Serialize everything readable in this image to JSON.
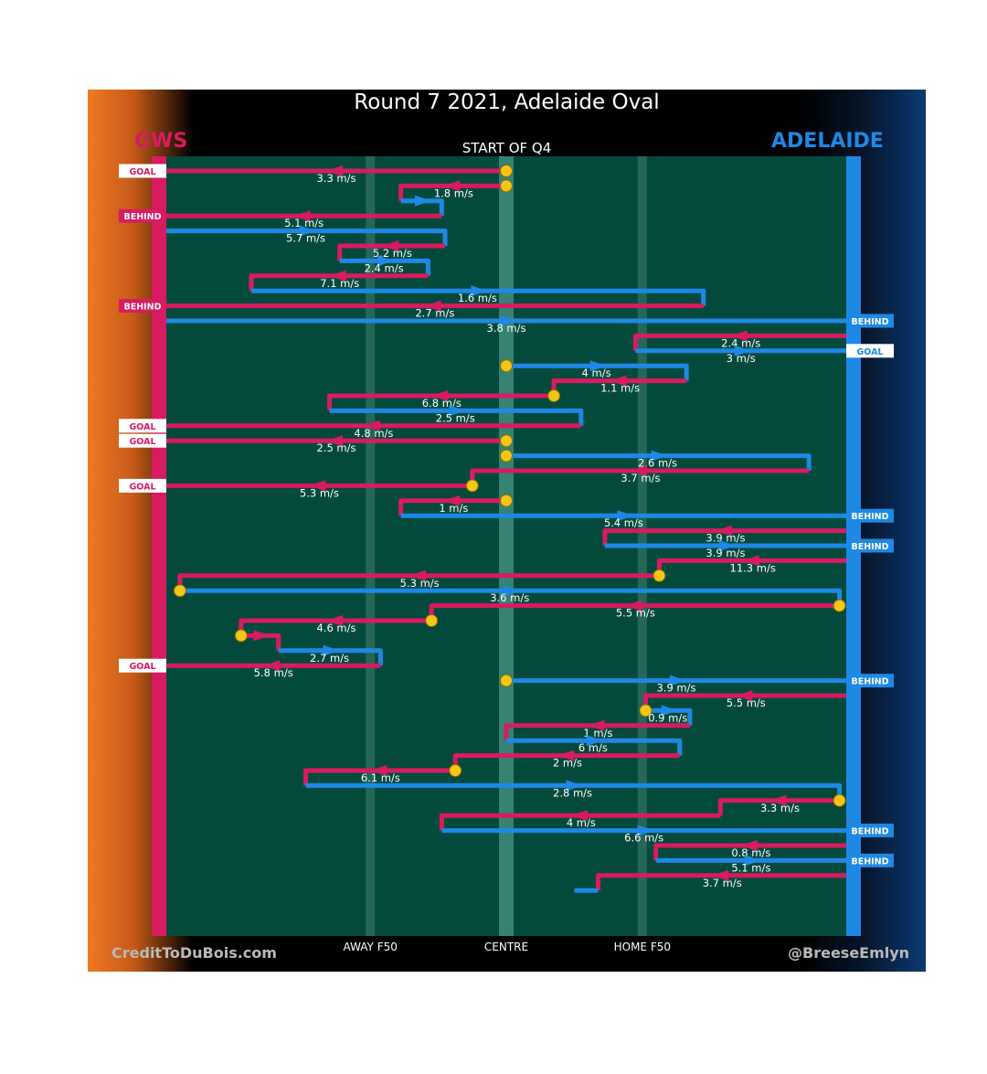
{
  "title": "Round 7 2021, Adelaide Oval",
  "quarter_label": "START OF Q4",
  "credit_left": "CreditToDuBois.com",
  "credit_right": "@BreeseEmlyn",
  "colors": {
    "gws": "#d81b60",
    "adelaide": "#1e88e5",
    "field": "#044a3c",
    "marker": "#f5c518"
  },
  "chart_data": {
    "type": "possession-chain",
    "title": "Round 7 2021, Adelaide Oval",
    "subtitle": "START OF Q4",
    "teams": {
      "left": "GWS",
      "right": "ADELAIDE"
    },
    "x_axis": {
      "range": [
        -1,
        1
      ],
      "ticks": [
        {
          "pos": -0.4,
          "label": "AWAY F50"
        },
        {
          "pos": 0,
          "label": "CENTRE"
        },
        {
          "pos": 0.4,
          "label": "HOME F50"
        }
      ]
    },
    "segments": [
      {
        "team": "GWS",
        "x0": 0,
        "x1": -1,
        "speed": "3.3 m/s",
        "start": "stoppage",
        "result": "GOAL"
      },
      {
        "team": "GWS",
        "x0": 0,
        "x1": -0.31,
        "speed": "1.8 m/s",
        "start": "stoppage"
      },
      {
        "team": "ADE",
        "x0": -0.31,
        "x1": -0.19,
        "speed": ""
      },
      {
        "team": "GWS",
        "x0": -0.19,
        "x1": -1,
        "speed": "5.1 m/s",
        "result": "BEHIND"
      },
      {
        "team": "ADE",
        "x0": -1,
        "x1": -0.18,
        "speed": "5.7 m/s"
      },
      {
        "team": "GWS",
        "x0": -0.18,
        "x1": -0.49,
        "speed": "5.2 m/s"
      },
      {
        "team": "ADE",
        "x0": -0.49,
        "x1": -0.23,
        "speed": "2.4 m/s"
      },
      {
        "team": "GWS",
        "x0": -0.23,
        "x1": -0.75,
        "speed": "7.1 m/s"
      },
      {
        "team": "ADE",
        "x0": -0.75,
        "x1": 0.58,
        "speed": "1.6 m/s"
      },
      {
        "team": "GWS",
        "x0": 0.58,
        "x1": -1,
        "speed": "2.7 m/s",
        "result": "BEHIND"
      },
      {
        "team": "ADE",
        "x0": -1,
        "x1": 1,
        "speed": "3.8 m/s",
        "result": "BEHIND"
      },
      {
        "team": "GWS",
        "x0": 1,
        "x1": 0.38,
        "speed": "2.4 m/s"
      },
      {
        "team": "ADE",
        "x0": 0.38,
        "x1": 1,
        "speed": "3 m/s",
        "result": "GOAL"
      },
      {
        "team": "ADE",
        "x0": 0,
        "x1": 0.53,
        "speed": "4 m/s",
        "start": "stoppage"
      },
      {
        "team": "GWS",
        "x0": 0.53,
        "x1": 0.14,
        "speed": "1.1 m/s"
      },
      {
        "team": "GWS",
        "x0": 0.14,
        "x1": -0.52,
        "speed": "6.8 m/s",
        "start": "stoppage"
      },
      {
        "team": "ADE",
        "x0": -0.52,
        "x1": 0.22,
        "speed": "2.5 m/s"
      },
      {
        "team": "GWS",
        "x0": 0.22,
        "x1": -1,
        "speed": "4.8 m/s",
        "result": "GOAL"
      },
      {
        "team": "GWS",
        "x0": 0,
        "x1": -1,
        "speed": "2.5 m/s",
        "start": "stoppage",
        "result": "GOAL"
      },
      {
        "team": "ADE",
        "x0": 0,
        "x1": 0.89,
        "speed": "2.6 m/s",
        "start": "stoppage"
      },
      {
        "team": "GWS",
        "x0": 0.89,
        "x1": -0.1,
        "speed": "3.7 m/s"
      },
      {
        "team": "GWS",
        "x0": -0.1,
        "x1": -1,
        "speed": "5.3 m/s",
        "start": "stoppage",
        "result": "GOAL"
      },
      {
        "team": "GWS",
        "x0": 0,
        "x1": -0.31,
        "speed": "1 m/s",
        "start": "stoppage"
      },
      {
        "team": "ADE",
        "x0": -0.31,
        "x1": 1,
        "speed": "5.4 m/s",
        "result": "BEHIND"
      },
      {
        "team": "GWS",
        "x0": 1,
        "x1": 0.29,
        "speed": "3.9 m/s"
      },
      {
        "team": "ADE",
        "x0": 0.29,
        "x1": 1,
        "speed": "3.9 m/s",
        "result": "BEHIND"
      },
      {
        "team": "GWS",
        "x0": 1,
        "x1": 0.45,
        "speed": "11.3 m/s"
      },
      {
        "team": "GWS",
        "x0": 0.45,
        "x1": -0.96,
        "speed": "5.3 m/s",
        "start": "stoppage"
      },
      {
        "team": "ADE",
        "x0": -0.96,
        "x1": 0.98,
        "speed": "3.6 m/s",
        "start": "stoppage"
      },
      {
        "team": "GWS",
        "x0": 0.98,
        "x1": -0.22,
        "speed": "5.5 m/s",
        "start": "stoppage"
      },
      {
        "team": "GWS",
        "x0": -0.22,
        "x1": -0.78,
        "speed": "4.6 m/s",
        "start": "stoppage"
      },
      {
        "team": "GWS",
        "x0": -0.78,
        "x1": -0.67,
        "speed": "",
        "start": "stoppage"
      },
      {
        "team": "ADE",
        "x0": -0.67,
        "x1": -0.37,
        "speed": "2.7 m/s"
      },
      {
        "team": "GWS",
        "x0": -0.37,
        "x1": -1,
        "speed": "5.8 m/s",
        "result": "GOAL"
      },
      {
        "team": "ADE",
        "x0": 0,
        "x1": 1,
        "speed": "3.9 m/s",
        "start": "stoppage",
        "result": "BEHIND"
      },
      {
        "team": "GWS",
        "x0": 1,
        "x1": 0.41,
        "speed": "5.5 m/s"
      },
      {
        "team": "ADE",
        "x0": 0.41,
        "x1": 0.54,
        "speed": "0.9 m/s",
        "start": "stoppage"
      },
      {
        "team": "GWS",
        "x0": 0.54,
        "x1": 0,
        "speed": "1 m/s"
      },
      {
        "team": "ADE",
        "x0": 0,
        "x1": 0.51,
        "speed": "6 m/s"
      },
      {
        "team": "GWS",
        "x0": 0.51,
        "x1": -0.15,
        "speed": "2 m/s"
      },
      {
        "team": "GWS",
        "x0": -0.15,
        "x1": -0.59,
        "speed": "6.1 m/s",
        "start": "stoppage"
      },
      {
        "team": "ADE",
        "x0": -0.59,
        "x1": 0.98,
        "speed": "2.8 m/s"
      },
      {
        "team": "GWS",
        "x0": 0.98,
        "x1": 0.63,
        "speed": "3.3 m/s",
        "start": "stoppage"
      },
      {
        "team": "GWS",
        "x0": 0.63,
        "x1": -0.19,
        "speed": "4 m/s"
      },
      {
        "team": "ADE",
        "x0": -0.19,
        "x1": 1,
        "speed": "6.6 m/s",
        "result": "BEHIND"
      },
      {
        "team": "GWS",
        "x0": 1,
        "x1": 0.44,
        "speed": "0.8 m/s"
      },
      {
        "team": "ADE",
        "x0": 0.44,
        "x1": 1,
        "speed": "5.1 m/s",
        "result": "BEHIND"
      },
      {
        "team": "GWS",
        "x0": 1,
        "x1": 0.27,
        "speed": "3.7 m/s"
      },
      {
        "team": "ADE",
        "x0": 0.27,
        "x1": 0.2,
        "speed": ""
      }
    ]
  }
}
